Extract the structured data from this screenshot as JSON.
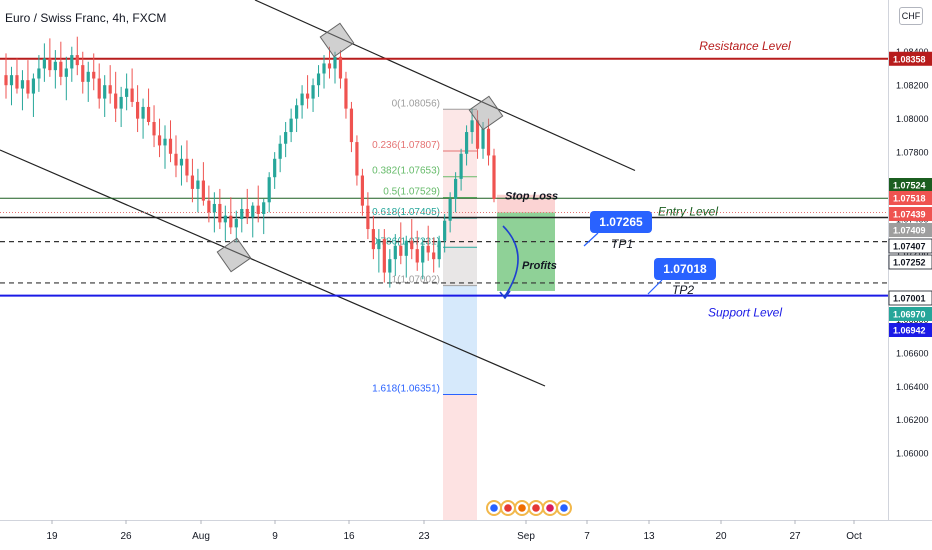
{
  "header": {
    "title": "Euro / Swiss Franc, 4h, FXCM",
    "currency_button": "CHF"
  },
  "colors": {
    "candle_up": "#26a69a",
    "candle_down": "#ef5350",
    "resistance": "#b71c1c",
    "support": "#1a1ae6",
    "entry": "#1b5e20",
    "target_label": "#2962ff",
    "fib_red": "#e57373",
    "fib_green": "#66bb6a",
    "fib_blue": "#2962ff"
  },
  "chart_data": {
    "type": "candlestick",
    "symbol": "EURCHF",
    "timeframe": "4h",
    "ylim": [
      1.0578,
      1.0853
    ],
    "y_ticks": [
      "1.08400",
      "1.08200",
      "1.08000",
      "1.07800",
      "1.07600",
      "1.07400",
      "1.07200",
      "1.06800",
      "1.06600",
      "1.06400",
      "1.06200",
      "1.06000"
    ],
    "x_ticks": [
      "19",
      "26",
      "Aug",
      "9",
      "16",
      "23",
      "Sep",
      "7",
      "13",
      "20",
      "27",
      "Oct"
    ],
    "price_tags": [
      {
        "value": "1.08358",
        "style": "resistance"
      },
      {
        "value": "1.07524",
        "style": "entry"
      },
      {
        "value": "1.07518",
        "style": "down"
      },
      {
        "value": "1.07439",
        "style": "down"
      },
      {
        "value": "1.07409",
        "style": "gray"
      },
      {
        "value": "1.07407",
        "style": "dark"
      },
      {
        "value": "1.07252",
        "style": "dark"
      },
      {
        "value": "1.07001",
        "style": "dark"
      },
      {
        "value": "1.06970",
        "style": "up"
      },
      {
        "value": "1.06942",
        "style": "support"
      }
    ],
    "levels": [
      {
        "name": "Resistance Level",
        "price": 1.08358
      },
      {
        "name": "Entry Level",
        "price": 1.07524
      },
      {
        "name": "Support Level",
        "price": 1.06942
      }
    ],
    "targets": [
      {
        "name": "TP1",
        "price": 1.07265,
        "label": "1.07265"
      },
      {
        "name": "TP2",
        "price": 1.07018,
        "label": "1.07018"
      }
    ],
    "annotations": [
      "Stop Loss",
      "Profits"
    ],
    "fib_levels": [
      {
        "ratio": "0",
        "price": "1.08056"
      },
      {
        "ratio": "0.236",
        "price": "1.07807"
      },
      {
        "ratio": "0.382",
        "price": "1.07653"
      },
      {
        "ratio": "0.5",
        "price": "1.07529"
      },
      {
        "ratio": "0.618",
        "price": "1.07405"
      },
      {
        "ratio": "0.786",
        "price": "1.07231"
      },
      {
        "ratio": "1",
        "price": "1.07002"
      },
      {
        "ratio": "1.618",
        "price": "1.06351"
      }
    ],
    "candles": [
      [
        1.0826,
        1.0839,
        1.0812,
        1.082
      ],
      [
        1.082,
        1.0831,
        1.0808,
        1.0826
      ],
      [
        1.0826,
        1.0836,
        1.0815,
        1.0818
      ],
      [
        1.0818,
        1.0829,
        1.0805,
        1.0823
      ],
      [
        1.0823,
        1.0835,
        1.0812,
        1.0815
      ],
      [
        1.0815,
        1.0827,
        1.0801,
        1.0824
      ],
      [
        1.0824,
        1.0838,
        1.0816,
        1.083
      ],
      [
        1.083,
        1.0845,
        1.0822,
        1.0836
      ],
      [
        1.0836,
        1.0848,
        1.0825,
        1.0829
      ],
      [
        1.0829,
        1.0841,
        1.0818,
        1.0834
      ],
      [
        1.0834,
        1.0846,
        1.082,
        1.0825
      ],
      [
        1.0825,
        1.0837,
        1.0811,
        1.083
      ],
      [
        1.083,
        1.0843,
        1.0822,
        1.0838
      ],
      [
        1.0838,
        1.0849,
        1.0826,
        1.0832
      ],
      [
        1.0832,
        1.084,
        1.0815,
        1.0822
      ],
      [
        1.0822,
        1.0834,
        1.081,
        1.0828
      ],
      [
        1.0828,
        1.0839,
        1.0817,
        1.0824
      ],
      [
        1.0824,
        1.0833,
        1.0806,
        1.0812
      ],
      [
        1.0812,
        1.0826,
        1.0801,
        1.082
      ],
      [
        1.082,
        1.0832,
        1.0809,
        1.0815
      ],
      [
        1.0815,
        1.0828,
        1.0798,
        1.0806
      ],
      [
        1.0806,
        1.0819,
        1.0795,
        1.0813
      ],
      [
        1.0813,
        1.0827,
        1.0805,
        1.0818
      ],
      [
        1.0818,
        1.083,
        1.0807,
        1.081
      ],
      [
        1.081,
        1.082,
        1.0792,
        1.08
      ],
      [
        1.08,
        1.0812,
        1.0788,
        1.0807
      ],
      [
        1.0807,
        1.0818,
        1.0796,
        1.0798
      ],
      [
        1.0798,
        1.0808,
        1.0783,
        1.079
      ],
      [
        1.079,
        1.08,
        1.0777,
        1.0784
      ],
      [
        1.0784,
        1.0796,
        1.077,
        1.0788
      ],
      [
        1.0788,
        1.0799,
        1.0774,
        1.0779
      ],
      [
        1.0779,
        1.079,
        1.0765,
        1.0772
      ],
      [
        1.0772,
        1.0784,
        1.076,
        1.0776
      ],
      [
        1.0776,
        1.0787,
        1.0762,
        1.0766
      ],
      [
        1.0766,
        1.0776,
        1.075,
        1.0758
      ],
      [
        1.0758,
        1.077,
        1.0744,
        1.0763
      ],
      [
        1.0763,
        1.0774,
        1.0748,
        1.0751
      ],
      [
        1.0751,
        1.076,
        1.0738,
        1.0744
      ],
      [
        1.0744,
        1.0756,
        1.0732,
        1.0749
      ],
      [
        1.0749,
        1.0758,
        1.0734,
        1.0738
      ],
      [
        1.0738,
        1.0748,
        1.0727,
        1.0742
      ],
      [
        1.0742,
        1.0753,
        1.0731,
        1.0735
      ],
      [
        1.0735,
        1.0745,
        1.0726,
        1.074
      ],
      [
        1.074,
        1.0752,
        1.0732,
        1.0746
      ],
      [
        1.0746,
        1.0758,
        1.0737,
        1.0741
      ],
      [
        1.0741,
        1.075,
        1.0729,
        1.0748
      ],
      [
        1.0748,
        1.076,
        1.0738,
        1.0743
      ],
      [
        1.0743,
        1.0752,
        1.0731,
        1.075
      ],
      [
        1.075,
        1.0768,
        1.0744,
        1.0765
      ],
      [
        1.0765,
        1.078,
        1.0758,
        1.0776
      ],
      [
        1.0776,
        1.079,
        1.0768,
        1.0785
      ],
      [
        1.0785,
        1.0798,
        1.0777,
        1.0792
      ],
      [
        1.0792,
        1.0806,
        1.0786,
        1.08
      ],
      [
        1.08,
        1.0812,
        1.0792,
        1.0808
      ],
      [
        1.0808,
        1.082,
        1.08,
        1.0815
      ],
      [
        1.0815,
        1.0826,
        1.0806,
        1.0812
      ],
      [
        1.0812,
        1.0824,
        1.0804,
        1.082
      ],
      [
        1.082,
        1.0832,
        1.0813,
        1.0827
      ],
      [
        1.0827,
        1.0838,
        1.0818,
        1.0833
      ],
      [
        1.0833,
        1.0843,
        1.0824,
        1.083
      ],
      [
        1.083,
        1.084,
        1.0821,
        1.0837
      ],
      [
        1.0837,
        1.0841,
        1.0818,
        1.0824
      ],
      [
        1.0824,
        1.0828,
        1.08,
        1.0806
      ],
      [
        1.0806,
        1.081,
        1.078,
        1.0786
      ],
      [
        1.0786,
        1.079,
        1.076,
        1.0766
      ],
      [
        1.0766,
        1.077,
        1.0742,
        1.0748
      ],
      [
        1.0748,
        1.0756,
        1.0728,
        1.0734
      ],
      [
        1.0734,
        1.0742,
        1.0716,
        1.0722
      ],
      [
        1.0722,
        1.0734,
        1.0708,
        1.0728
      ],
      [
        1.0728,
        1.0734,
        1.0702,
        1.0708
      ],
      [
        1.0708,
        1.0722,
        1.0699,
        1.0716
      ],
      [
        1.0716,
        1.0731,
        1.0706,
        1.0724
      ],
      [
        1.0724,
        1.0738,
        1.0713,
        1.0718
      ],
      [
        1.0718,
        1.073,
        1.0705,
        1.0727
      ],
      [
        1.0727,
        1.074,
        1.0716,
        1.0722
      ],
      [
        1.0722,
        1.0733,
        1.0709,
        1.0714
      ],
      [
        1.0714,
        1.0728,
        1.0704,
        1.0724
      ],
      [
        1.0724,
        1.0736,
        1.0715,
        1.072
      ],
      [
        1.072,
        1.0729,
        1.0708,
        1.0716
      ],
      [
        1.0716,
        1.073,
        1.0711,
        1.0727
      ],
      [
        1.0727,
        1.0743,
        1.072,
        1.0739
      ],
      [
        1.0739,
        1.0756,
        1.0732,
        1.0752
      ],
      [
        1.0752,
        1.0768,
        1.0744,
        1.0764
      ],
      [
        1.0764,
        1.0782,
        1.0757,
        1.0779
      ],
      [
        1.0779,
        1.0796,
        1.0772,
        1.0792
      ],
      [
        1.0792,
        1.0806,
        1.0785,
        1.0799
      ],
      [
        1.0799,
        1.0805,
        1.0776,
        1.0782
      ],
      [
        1.0782,
        1.0798,
        1.0776,
        1.0794
      ],
      [
        1.0794,
        1.08,
        1.0772,
        1.0778
      ],
      [
        1.0778,
        1.0782,
        1.075,
        1.0752
      ]
    ]
  }
}
